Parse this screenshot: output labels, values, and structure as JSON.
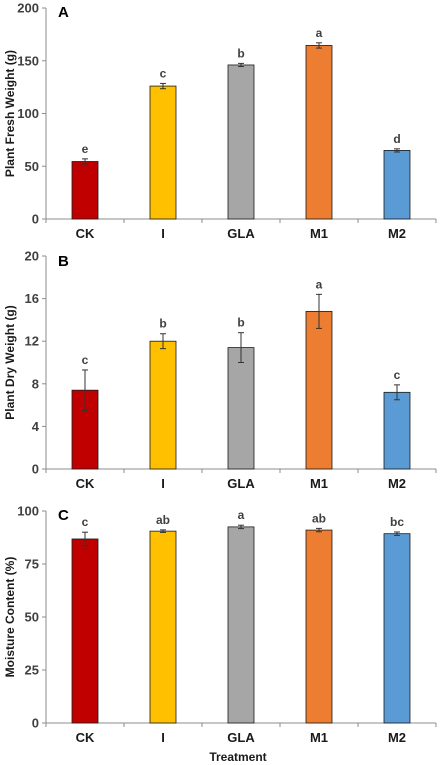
{
  "xlabel": "Treatment",
  "chart_data": [
    {
      "type": "bar",
      "panel": "A",
      "ylabel": "Plant Fresh Weight (g)",
      "ylim": [
        0,
        200
      ],
      "yticks": [
        0,
        50,
        100,
        150,
        200
      ],
      "categories": [
        "CK",
        "I",
        "GLA",
        "M1",
        "M2"
      ],
      "values": [
        54.5,
        126,
        146,
        164.5,
        65
      ],
      "errors": [
        2.5,
        2.5,
        1.5,
        2.5,
        1.5
      ],
      "letters": [
        "e",
        "c",
        "b",
        "a",
        "d"
      ],
      "colors": [
        "#c00000",
        "#ffc000",
        "#a6a6a6",
        "#ed7d31",
        "#5b9bd5"
      ]
    },
    {
      "type": "bar",
      "panel": "B",
      "ylabel": "Plant Dry Weight (g)",
      "ylim": [
        0,
        20
      ],
      "yticks": [
        0,
        4,
        8,
        12,
        16,
        20
      ],
      "categories": [
        "CK",
        "I",
        "GLA",
        "M1",
        "M2"
      ],
      "values": [
        7.4,
        12.0,
        11.4,
        14.8,
        7.2
      ],
      "errors": [
        1.9,
        0.7,
        1.4,
        1.6,
        0.7
      ],
      "letters": [
        "c",
        "b",
        "b",
        "a",
        "c"
      ],
      "colors": [
        "#c00000",
        "#ffc000",
        "#a6a6a6",
        "#ed7d31",
        "#5b9bd5"
      ]
    },
    {
      "type": "bar",
      "panel": "C",
      "ylabel": "Moisture Content (%)",
      "ylim": [
        0,
        100
      ],
      "yticks": [
        0,
        25,
        50,
        75,
        100
      ],
      "categories": [
        "CK",
        "I",
        "GLA",
        "M1",
        "M2"
      ],
      "values": [
        86.8,
        90.5,
        92.5,
        91.0,
        89.3
      ],
      "errors": [
        3.2,
        0.6,
        0.8,
        0.8,
        0.8
      ],
      "letters": [
        "c",
        "ab",
        "a",
        "ab",
        "bc"
      ],
      "colors": [
        "#c00000",
        "#ffc000",
        "#a6a6a6",
        "#ed7d31",
        "#5b9bd5"
      ]
    }
  ]
}
